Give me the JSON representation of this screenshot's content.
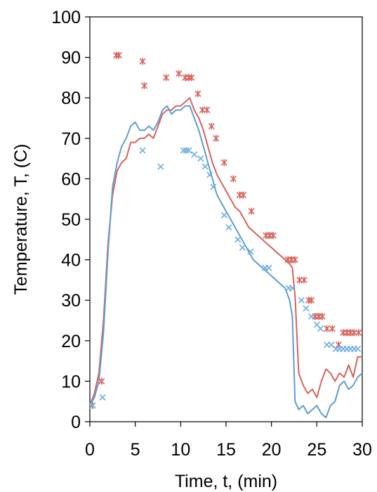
{
  "chart_data": {
    "type": "scatter",
    "title": "",
    "xlabel": "Time, t, (min)",
    "ylabel": "Temperature, T, (C)",
    "xlim": [
      0,
      30
    ],
    "ylim": [
      0,
      100
    ],
    "xticks": [
      0,
      5,
      10,
      15,
      20,
      25,
      30
    ],
    "yticks": [
      0,
      10,
      20,
      30,
      40,
      50,
      60,
      70,
      80,
      90,
      100
    ],
    "grid": false,
    "legend": "none",
    "series": [
      {
        "kind": "line",
        "color": "#d9625a",
        "x": [
          0,
          0.5,
          1.0,
          1.5,
          2.0,
          2.5,
          3.0,
          3.5,
          4.0,
          4.5,
          5.0,
          5.5,
          6.0,
          6.5,
          7.0,
          7.5,
          8.0,
          8.5,
          9.0,
          9.5,
          10.0,
          10.5,
          11.0,
          11.5,
          12.0,
          12.5,
          13.0,
          13.5,
          14.0,
          14.5,
          15.0,
          15.5,
          16.0,
          16.5,
          17.0,
          17.5,
          18.0,
          18.5,
          19.0,
          19.5,
          20.0,
          20.5,
          21.0,
          21.5,
          22.0,
          22.3,
          22.6,
          23.0,
          23.5,
          24.0,
          24.5,
          25.0,
          25.5,
          26.0,
          26.5,
          27.0,
          27.5,
          28.0,
          28.5,
          29.0,
          29.5,
          30.0
        ],
        "y": [
          4,
          7,
          12,
          25,
          44,
          56,
          62,
          64,
          65,
          69,
          69,
          70,
          70,
          71,
          70,
          73,
          76,
          77,
          77,
          78,
          78,
          79,
          80,
          77,
          75,
          72,
          68,
          64,
          61,
          59,
          57,
          55,
          53,
          52,
          50,
          48,
          47,
          46,
          45,
          44,
          43,
          42,
          41,
          40,
          39,
          38,
          31,
          12,
          9,
          7,
          8,
          6,
          10,
          13,
          12,
          10,
          12,
          11,
          14,
          11,
          16,
          16
        ]
      },
      {
        "kind": "line",
        "color": "#5e9dd3",
        "x": [
          0,
          0.5,
          1.0,
          1.5,
          2.0,
          2.5,
          3.0,
          3.5,
          4.0,
          4.5,
          5.0,
          5.5,
          6.0,
          6.5,
          7.0,
          7.5,
          8.0,
          8.5,
          9.0,
          9.5,
          10.0,
          10.5,
          11.0,
          11.5,
          12.0,
          12.5,
          13.0,
          13.5,
          14.0,
          14.5,
          15.0,
          15.5,
          16.0,
          16.5,
          17.0,
          17.5,
          18.0,
          18.5,
          19.0,
          19.5,
          20.0,
          20.5,
          21.0,
          21.5,
          22.0,
          22.3,
          22.6,
          23.0,
          23.5,
          24.0,
          24.5,
          25.0,
          25.5,
          26.0,
          26.5,
          27.0,
          27.5,
          28.0,
          28.5,
          29.0,
          29.5,
          30.0
        ],
        "y": [
          4,
          6,
          10,
          22,
          42,
          58,
          64,
          68,
          70,
          73,
          74,
          72,
          72,
          73,
          72,
          74,
          77,
          78,
          76,
          77,
          77,
          78,
          78,
          75,
          72,
          68,
          64,
          60,
          56,
          54,
          52,
          50,
          48,
          46,
          44,
          42,
          40,
          39,
          38,
          37,
          36,
          35,
          34,
          33,
          30,
          26,
          5,
          3,
          4,
          2,
          3,
          4,
          2,
          1,
          4,
          5,
          9,
          10,
          8,
          9,
          11,
          12
        ]
      },
      {
        "kind": "markers",
        "marker": "asterisk",
        "color": "#d9625a",
        "x": [
          0.3,
          1.3,
          2.9,
          3.2,
          5.8,
          6.0,
          8.4,
          9.8,
          10.5,
          10.9,
          11.2,
          11.9,
          12.4,
          12.9,
          13.4,
          13.9,
          14.8,
          15.8,
          16.5,
          16.9,
          17.8,
          19.4,
          19.8,
          20.2,
          21.8,
          22.2,
          22.6,
          23.1,
          23.6,
          24.1,
          24.4,
          24.8,
          25.2,
          25.6,
          26.1,
          26.7,
          27.4,
          27.9,
          28.3,
          28.7,
          29.1,
          29.6
        ],
        "y": [
          4,
          10,
          90.5,
          90.5,
          89,
          83,
          85,
          86,
          85,
          85,
          85,
          81,
          77,
          77,
          73,
          70,
          64,
          60,
          56,
          56,
          52,
          46,
          46,
          46,
          40,
          40,
          40,
          35,
          35,
          30,
          30,
          26,
          26,
          26,
          23,
          23,
          19,
          22,
          22,
          22,
          22,
          22
        ]
      },
      {
        "kind": "markers",
        "marker": "x",
        "color": "#6aaee0",
        "x": [
          0.3,
          1.4,
          5.8,
          7.8,
          10.3,
          10.6,
          10.9,
          11.5,
          12.2,
          12.7,
          13.2,
          13.6,
          14.8,
          15.3,
          16.3,
          16.8,
          17.7,
          19.3,
          19.7,
          21.9,
          22.3,
          23.3,
          23.8,
          24.4,
          25.0,
          25.4,
          26.1,
          26.6,
          27.1,
          27.5,
          27.9,
          28.3,
          28.7,
          29.1,
          29.5
        ],
        "y": [
          4,
          6,
          67,
          63,
          67,
          67,
          67,
          66,
          65,
          63,
          61,
          58,
          51,
          48,
          45,
          43,
          42,
          38,
          38,
          33,
          33,
          30,
          28,
          26,
          24,
          23,
          19,
          19,
          18,
          18,
          18,
          18,
          18,
          18,
          18
        ]
      }
    ]
  }
}
